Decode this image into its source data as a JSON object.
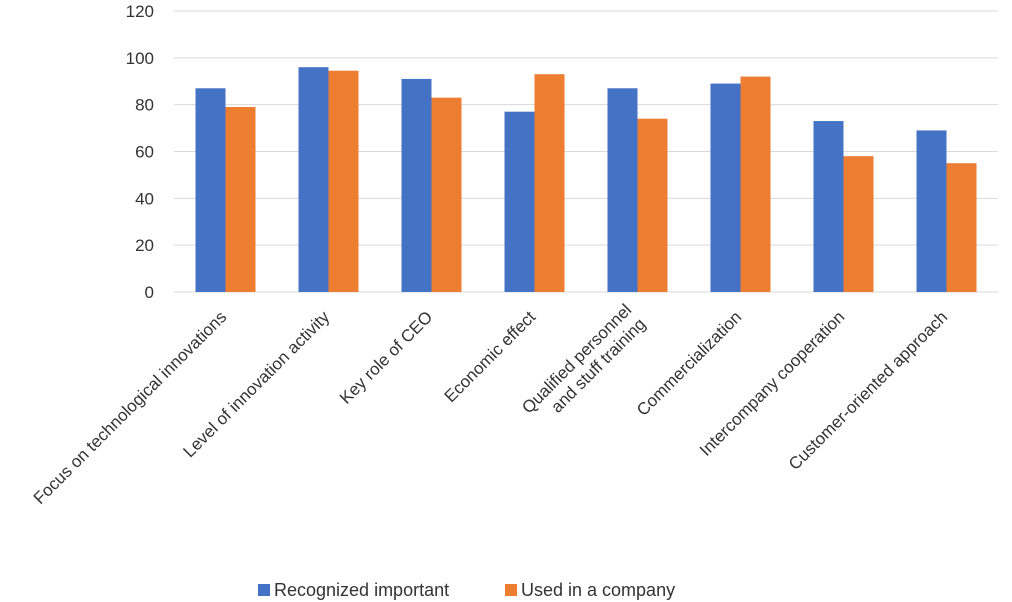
{
  "chart_data": {
    "type": "bar",
    "title": "",
    "xlabel": "",
    "ylabel": "",
    "ylim": [
      0,
      120
    ],
    "yticks": [
      0,
      20,
      40,
      60,
      80,
      100,
      120
    ],
    "grid": true,
    "legend_position": "bottom",
    "categories": [
      [
        "Focus on technological innovations"
      ],
      [
        "Level of innovation activity"
      ],
      [
        "Key role of CEO"
      ],
      [
        "Economic effect"
      ],
      [
        "Qualified personnel",
        "and stuff training"
      ],
      [
        "Commercialization"
      ],
      [
        "Intercompany cooperation"
      ],
      [
        "Customer-oriented approach"
      ]
    ],
    "series": [
      {
        "name": "Recognized important",
        "color": "#4472c4",
        "values": [
          87,
          96,
          91,
          77,
          87,
          89,
          73,
          69
        ]
      },
      {
        "name": "Used in a company",
        "color": "#ed7d31",
        "values": [
          79,
          94.5,
          83,
          93,
          74,
          92,
          58,
          55
        ]
      }
    ]
  }
}
